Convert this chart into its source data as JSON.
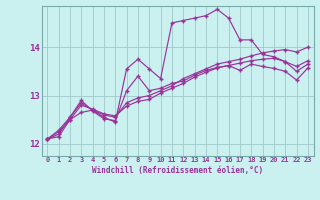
{
  "xlabel": "Windchill (Refroidissement éolien,°C)",
  "bg_color": "#caf0f0",
  "line_color": "#993399",
  "grid_color": "#a0c8c8",
  "xmin": -0.5,
  "xmax": 23.5,
  "ymin": 11.75,
  "ymax": 14.85,
  "yticks": [
    12,
    13,
    14
  ],
  "series": [
    [
      0,
      12.1,
      1,
      12.15,
      2,
      12.5,
      3,
      12.65,
      4,
      12.7,
      5,
      12.55,
      6,
      12.45,
      7,
      13.55,
      8,
      13.75,
      9,
      13.55,
      10,
      13.35,
      11,
      14.5,
      12,
      14.55,
      13,
      14.6,
      14,
      14.65,
      15,
      14.78,
      16,
      14.6,
      17,
      14.15,
      18,
      14.15,
      19,
      13.85,
      20,
      13.8,
      21,
      13.7,
      22,
      13.5,
      23,
      13.65
    ],
    [
      0,
      12.1,
      1,
      12.2,
      2,
      12.55,
      3,
      12.85,
      4,
      12.7,
      5,
      12.6,
      6,
      12.55,
      7,
      12.85,
      8,
      12.95,
      9,
      13.0,
      10,
      13.1,
      11,
      13.2,
      12,
      13.35,
      13,
      13.45,
      14,
      13.55,
      15,
      13.65,
      16,
      13.7,
      17,
      13.75,
      18,
      13.82,
      19,
      13.88,
      20,
      13.92,
      21,
      13.95,
      22,
      13.9,
      23,
      14.0
    ],
    [
      0,
      12.1,
      1,
      12.25,
      2,
      12.5,
      3,
      12.8,
      4,
      12.72,
      5,
      12.62,
      6,
      12.58,
      7,
      12.78,
      8,
      12.88,
      9,
      12.92,
      10,
      13.05,
      11,
      13.15,
      12,
      13.25,
      13,
      13.38,
      14,
      13.48,
      15,
      13.57,
      16,
      13.62,
      17,
      13.67,
      18,
      13.72,
      19,
      13.75,
      20,
      13.77,
      21,
      13.7,
      22,
      13.6,
      23,
      13.72
    ],
    [
      0,
      12.1,
      1,
      12.28,
      2,
      12.55,
      3,
      12.9,
      4,
      12.68,
      5,
      12.52,
      6,
      12.48,
      7,
      13.1,
      8,
      13.4,
      9,
      13.1,
      10,
      13.15,
      11,
      13.25,
      12,
      13.3,
      13,
      13.42,
      14,
      13.52,
      15,
      13.58,
      16,
      13.62,
      17,
      13.52,
      18,
      13.65,
      19,
      13.6,
      20,
      13.56,
      21,
      13.5,
      22,
      13.32,
      23,
      13.57
    ]
  ]
}
